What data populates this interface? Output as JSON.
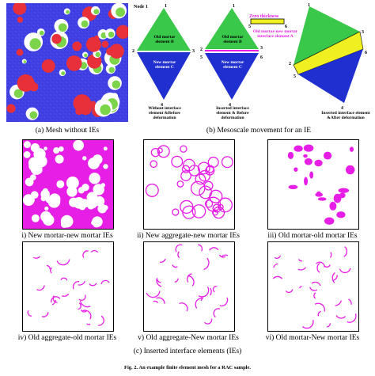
{
  "figure": {
    "caption_a": "(a) Mesh without IEs",
    "caption_b": "(b) Mesoscale movement for an IE",
    "caption_c": "(c) Inserted interface elements (IEs)",
    "figure_caption": "Fig. 2.  An example finite element mesh for a RAC sample."
  },
  "schematic": {
    "node_label": "Node 1",
    "n1": "1",
    "n2": "2",
    "n3": "3",
    "n4": "4",
    "n5": "5",
    "n6": "6",
    "old_mortar": "Old mortar element B",
    "new_mortar": "New mortar element C",
    "zero_thickness": "Zero thickness",
    "interface_label": "Old mortar-new mortar interface element A",
    "stage1": "Without interface element &Before deformation",
    "stage2": "Inserted interface element & Before deformation",
    "stage3": "Inserted interface element &After deformation"
  },
  "panels": [
    {
      "caption": "i) New mortar-new mortar IEs"
    },
    {
      "caption": "ii) New aggregate-new mortar IEs"
    },
    {
      "caption": "iii) Old mortar-old mortar IEs"
    },
    {
      "caption": "iv) Old aggregate-old mortar IEs"
    },
    {
      "caption": "v) Old aggregate-New mortar IEs"
    },
    {
      "caption": "vi) Old mortar-New mortar IEs"
    }
  ],
  "colors": {
    "mesh_blue": "#3a3ae0",
    "new_aggregate_red": "#e8303a",
    "old_aggregate_green": "#7cd44a",
    "old_mortar_green": "#39c84a",
    "new_mortar_blue": "#1f2fd0",
    "interface_yellow": "#f0f020",
    "ie_magenta": "#e61ee6"
  }
}
